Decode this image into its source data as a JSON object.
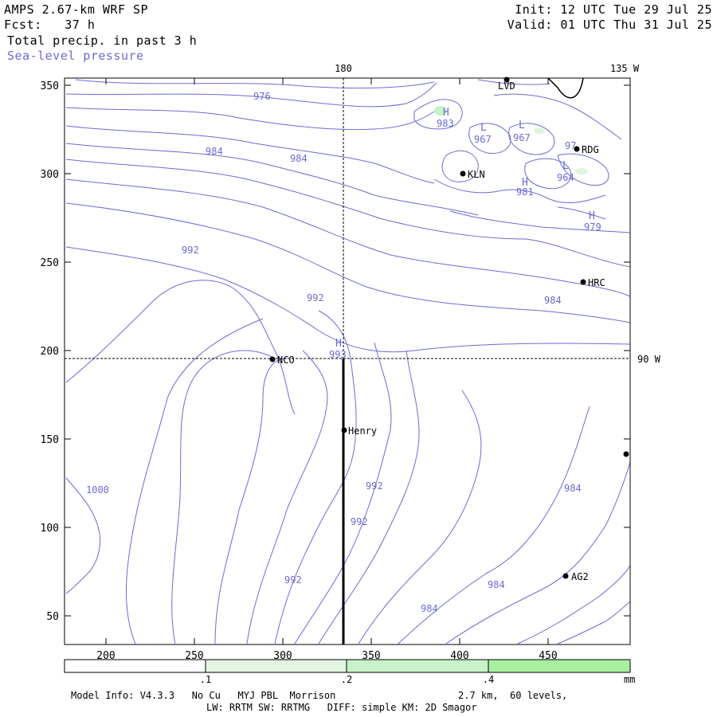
{
  "header": {
    "model": "AMPS 2.67-km WRF SP",
    "forecast": "Fcst:   37 h",
    "init": "Init: 12 UTC Tue 29 Jul 25",
    "valid": "Valid: 01 UTC Thu 31 Jul 25",
    "field1": "Total precip. in past 3 h",
    "field2": "Sea-level pressure"
  },
  "colors": {
    "contour": "#6b6bd6",
    "precip_low": "#dff5df",
    "precip_mid": "#c0f0c0",
    "precip_high": "#a8f0a0"
  },
  "map": {
    "x_ticks": [
      "200",
      "250",
      "300",
      "350",
      "400",
      "450"
    ],
    "y_ticks": [
      "350",
      "300",
      "250",
      "200",
      "150",
      "100",
      "50"
    ],
    "meridian_labels": {
      "m180": "180",
      "m135w": "135 W",
      "m90w": "90 W"
    },
    "stations": [
      {
        "name": "LVD"
      },
      {
        "name": "RDG"
      },
      {
        "name": "KLN"
      },
      {
        "name": "HRC"
      },
      {
        "name": "NCO"
      },
      {
        "name": "Henry"
      },
      {
        "name": "AG2"
      }
    ],
    "contour_labels": {
      "c976": "976",
      "c984a": "984",
      "c984b": "984",
      "c983": "983",
      "c967a": "967",
      "c967b": "967",
      "c97": "97",
      "c964": "964",
      "c981": "981",
      "c979": "979",
      "c992a": "992",
      "c992b": "992",
      "c984c": "984",
      "c993": "993",
      "c992c": "992",
      "c992d": "992",
      "c992e": "992",
      "c984d": "984",
      "c984e": "984",
      "c984f": "984",
      "c1000": "1000"
    },
    "pressure_centers": {
      "h1": "H",
      "h2": "H",
      "h3": "H",
      "h4": "H",
      "l1": "L",
      "l2": "L",
      "l3": "L"
    }
  },
  "precip_legend": {
    "ticks": [
      ".1",
      ".2",
      ".4"
    ],
    "units": "mm"
  },
  "footer": {
    "line1_left": "Model Info: V4.3.3   No Cu   MYJ PBL  Morrison",
    "line1_right": "2.7 km,  60 levels,",
    "line2": "LW: RRTM SW: RRTMG   DIFF: simple KM: 2D Smagor"
  }
}
